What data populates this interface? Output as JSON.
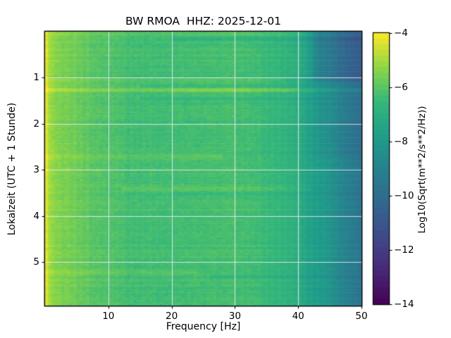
{
  "figure": {
    "background": "#ffffff",
    "text_color": "#000000"
  },
  "chart_data": {
    "type": "heatmap",
    "title": "BW RMOA  HHZ: 2025-12-01",
    "xlabel": "Frequency [Hz]",
    "ylabel": "Lokalzeit (UTC + 1 Stunde)",
    "xlim": [
      0,
      50
    ],
    "ylim": [
      0,
      5.95
    ],
    "xticks": [
      10,
      20,
      30,
      40,
      50
    ],
    "yticks": [
      1,
      2,
      3,
      4,
      5
    ],
    "grid": true,
    "grid_color": "rgba(240,235,240,0.85)",
    "colormap": "viridis",
    "colormap_stops": [
      [
        0.0,
        [
          68,
          1,
          84
        ]
      ],
      [
        0.125,
        [
          72,
          40,
          120
        ]
      ],
      [
        0.25,
        [
          62,
          74,
          137
        ]
      ],
      [
        0.375,
        [
          49,
          104,
          142
        ]
      ],
      [
        0.5,
        [
          38,
          130,
          142
        ]
      ],
      [
        0.625,
        [
          31,
          158,
          137
        ]
      ],
      [
        0.75,
        [
          53,
          183,
          121
        ]
      ],
      [
        0.875,
        [
          143,
          215,
          68
        ]
      ],
      [
        1.0,
        [
          253,
          231,
          37
        ]
      ]
    ],
    "colorbar": {
      "label": "Log10(Sqrt(m**2/s**2/Hz))",
      "ticks": [
        -4,
        -6,
        -8,
        -10,
        -12,
        -14
      ],
      "vmin": -14,
      "vmax": -4,
      "steps": 48
    },
    "frequency_profile": [
      [
        0.0,
        -4.35
      ],
      [
        0.3,
        -4.5
      ],
      [
        0.7,
        -5.0
      ],
      [
        1.5,
        -5.35
      ],
      [
        3,
        -5.6
      ],
      [
        5,
        -5.75
      ],
      [
        7,
        -5.95
      ],
      [
        10,
        -6.15
      ],
      [
        14,
        -6.35
      ],
      [
        18,
        -6.35
      ],
      [
        24,
        -6.3
      ],
      [
        30,
        -6.25
      ],
      [
        34,
        -6.4
      ],
      [
        38,
        -6.75
      ],
      [
        40,
        -7.0
      ],
      [
        41.5,
        -7.6
      ],
      [
        43,
        -7.8
      ],
      [
        45,
        -8.2
      ],
      [
        47,
        -8.9
      ],
      [
        48.5,
        -9.3
      ],
      [
        50,
        -9.7
      ]
    ],
    "time_features": [
      {
        "time": 0.05,
        "width": 0.02,
        "fmin": 0,
        "fmax": 50,
        "delta": 0.3,
        "note": "bright first rows"
      },
      {
        "time": 0.16,
        "width": 0.03,
        "fmin": 20,
        "fmax": 50,
        "delta": -0.55,
        "note": "dark row near start"
      },
      {
        "time": 1.05,
        "width": 0.025,
        "fmin": 0,
        "fmax": 38,
        "delta": 0.35,
        "note": "mild bright row"
      },
      {
        "time": 1.18,
        "width": 0.02,
        "fmin": 15,
        "fmax": 50,
        "delta": -0.35,
        "note": "dark row"
      },
      {
        "time": 1.27,
        "width": 0.022,
        "fmin": 0,
        "fmax": 50,
        "delta": 0.85,
        "note": "prominent bright transient"
      },
      {
        "time": 1.27,
        "width": 0.02,
        "fmin": 20,
        "fmax": 40,
        "delta": 0.35,
        "note": "extra mid-band brightness"
      },
      {
        "time": 1.45,
        "width": 0.02,
        "fmin": 15,
        "fmax": 45,
        "delta": -0.3,
        "note": "dark row"
      },
      {
        "time": 2.7,
        "width": 0.05,
        "fmin": 0,
        "fmax": 28,
        "delta": 0.3,
        "note": "mild bright band"
      },
      {
        "time": 3.42,
        "width": 0.03,
        "fmin": 12,
        "fmax": 42,
        "delta": 0.45,
        "note": "bright band"
      },
      {
        "time": 3.5,
        "width": 0.03,
        "fmin": 20,
        "fmax": 50,
        "delta": -0.25,
        "note": "dark row"
      },
      {
        "time": 5.22,
        "width": 0.04,
        "fmin": 0,
        "fmax": 24,
        "delta": 0.35,
        "note": "bright low-freq band"
      },
      {
        "time": 5.32,
        "width": 0.03,
        "fmin": 26,
        "fmax": 50,
        "delta": -0.35,
        "note": "dark high-freq row"
      }
    ],
    "region_features": [
      {
        "tmin": -0.2,
        "tmax": 1.15,
        "fmin": 41.5,
        "fmax": 51,
        "delta": -0.95,
        "note": "dark high-frequency corner at start"
      },
      {
        "tmin": -0.2,
        "tmax": 2.8,
        "fmin": 42,
        "fmax": 51,
        "delta": -0.3,
        "note": "weaker high-frequency darkening"
      }
    ],
    "noise": {
      "cell": 0.16,
      "row": 0.12,
      "col": 0.09,
      "seed": 1234
    }
  }
}
